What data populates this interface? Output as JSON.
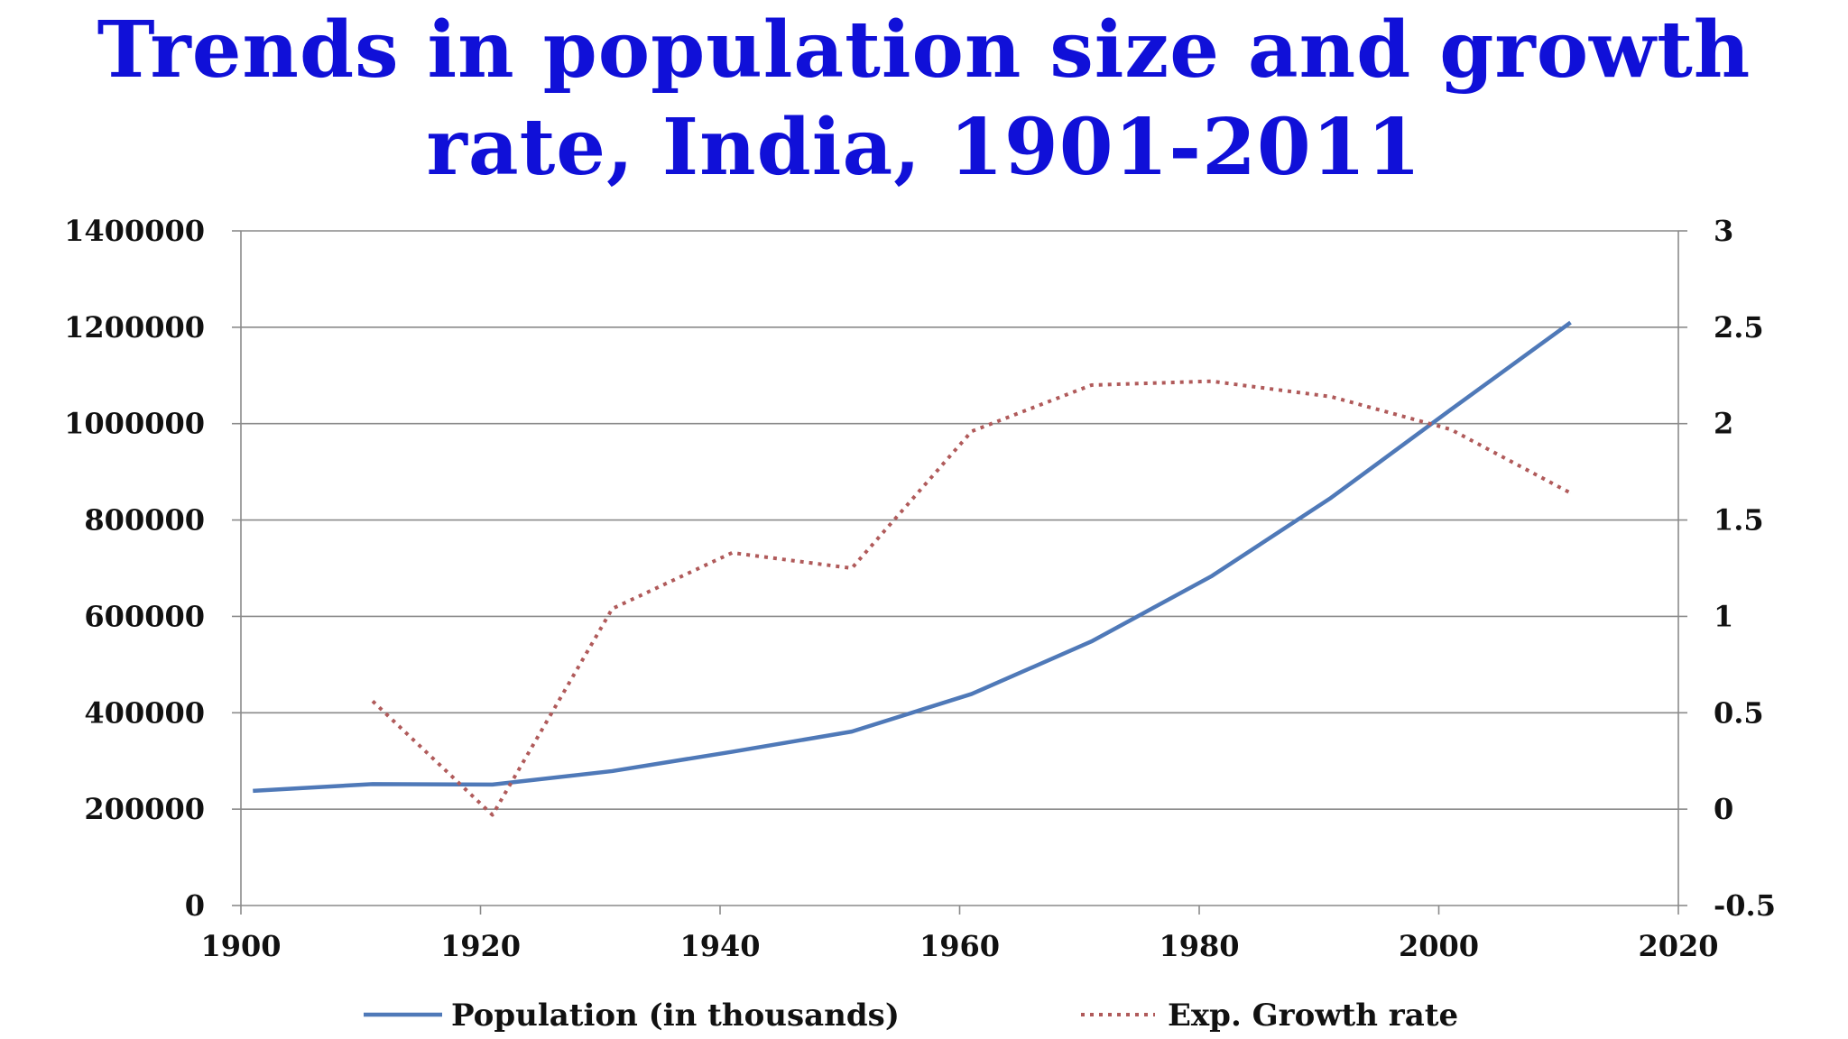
{
  "title": {
    "line1": "Trends in population size and growth",
    "line2": "rate, India, 1901-2011"
  },
  "chart_data": {
    "type": "line",
    "title": "Trends in population size and growth rate, India, 1901-2011",
    "xlabel": "",
    "ylabel": "",
    "y2label": "",
    "xlim": [
      1900,
      2020
    ],
    "ylim": [
      0,
      1400000
    ],
    "y2lim": [
      -0.5,
      3
    ],
    "x_ticks": [
      "1900",
      "1920",
      "1940",
      "1960",
      "1980",
      "2000",
      "2020"
    ],
    "y_ticks": [
      "0",
      "200000",
      "400000",
      "600000",
      "800000",
      "1000000",
      "1200000",
      "1400000"
    ],
    "y2_ticks": [
      "-0.5",
      "0",
      "0.5",
      "1",
      "1.5",
      "2",
      "2.5",
      "3"
    ],
    "grid": true,
    "legend_position": "bottom",
    "series": [
      {
        "name": "Population (in thousands)",
        "axis": "left",
        "style": "solid",
        "color": "#4f79b8",
        "points": [
          {
            "x": 1901,
            "y": 238000
          },
          {
            "x": 1911,
            "y": 252000
          },
          {
            "x": 1921,
            "y": 251000
          },
          {
            "x": 1931,
            "y": 279000
          },
          {
            "x": 1941,
            "y": 319000
          },
          {
            "x": 1951,
            "y": 361000
          },
          {
            "x": 1961,
            "y": 439000
          },
          {
            "x": 1971,
            "y": 548000
          },
          {
            "x": 1981,
            "y": 683000
          },
          {
            "x": 1991,
            "y": 846000
          },
          {
            "x": 2001,
            "y": 1029000
          },
          {
            "x": 2011,
            "y": 1210000
          }
        ]
      },
      {
        "name": "Exp. Growth rate",
        "axis": "right",
        "style": "dotted",
        "color": "#b05a5a",
        "points": [
          {
            "x": 1911,
            "y": 0.56
          },
          {
            "x": 1921,
            "y": -0.03
          },
          {
            "x": 1931,
            "y": 1.04
          },
          {
            "x": 1941,
            "y": 1.33
          },
          {
            "x": 1951,
            "y": 1.25
          },
          {
            "x": 1961,
            "y": 1.96
          },
          {
            "x": 1971,
            "y": 2.2
          },
          {
            "x": 1981,
            "y": 2.22
          },
          {
            "x": 1991,
            "y": 2.14
          },
          {
            "x": 2001,
            "y": 1.97
          },
          {
            "x": 2011,
            "y": 1.64
          }
        ]
      }
    ]
  }
}
